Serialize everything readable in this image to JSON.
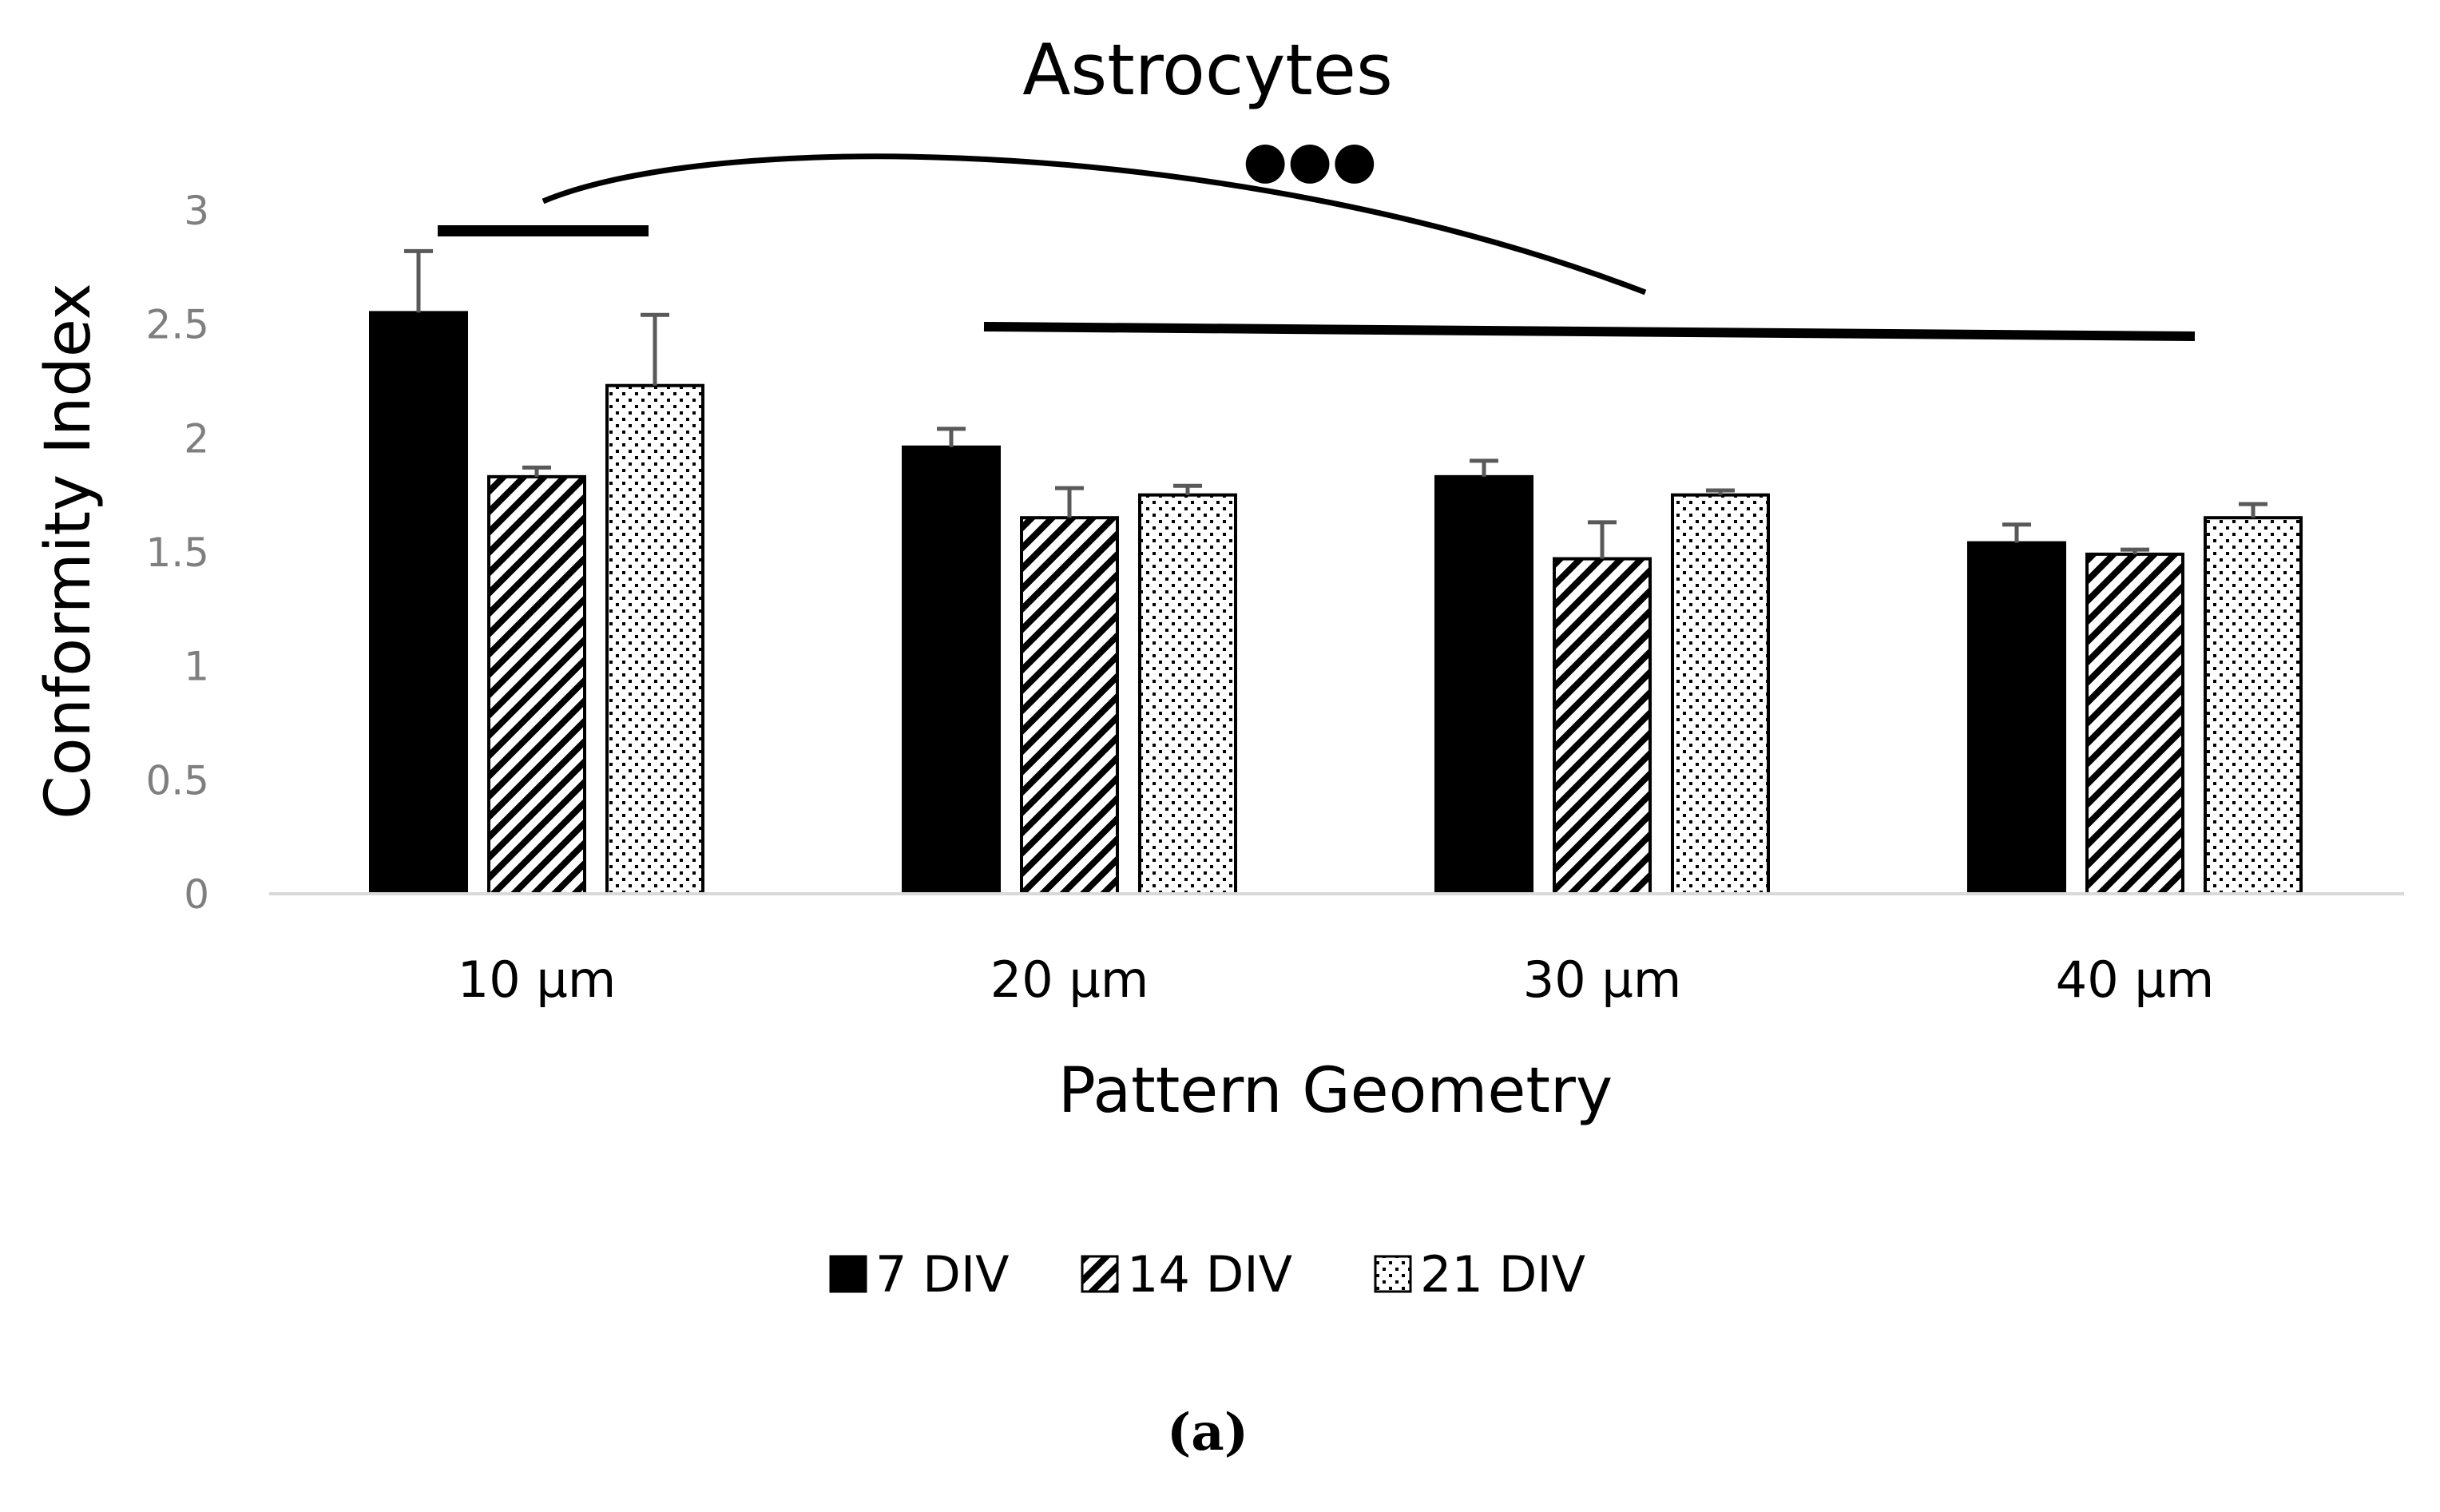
{
  "chart_data": {
    "type": "bar",
    "title": "Astrocytes",
    "xlabel": "Pattern Geometry",
    "ylabel": "Conformity Index",
    "ylim": [
      0,
      3
    ],
    "yticks": [
      "0",
      "0.5",
      "1",
      "1.5",
      "2",
      "2.5",
      "3"
    ],
    "grid": false,
    "legend_position": "bottom",
    "categories": [
      "10 µm",
      "20 µm",
      "30 µm",
      "40 µm"
    ],
    "series": [
      {
        "name": "7 DIV",
        "pattern": "solid",
        "values": [
          2.55,
          1.96,
          1.83,
          1.54
        ],
        "errors": [
          0.27,
          0.08,
          0.07,
          0.08
        ]
      },
      {
        "name": "14 DIV",
        "pattern": "hatch",
        "values": [
          1.83,
          1.65,
          1.47,
          1.49
        ],
        "errors": [
          0.04,
          0.13,
          0.16,
          0.02
        ]
      },
      {
        "name": "21 DIV",
        "pattern": "dotted",
        "values": [
          2.23,
          1.75,
          1.75,
          1.65
        ],
        "errors": [
          0.31,
          0.04,
          0.02,
          0.06
        ]
      }
    ],
    "annotations": {
      "significance_marker": "●●●"
    },
    "panel_label": "(a)"
  },
  "colors": {
    "bar": "#000000",
    "axis": "#d9d9d9",
    "tick": "#7f7f7f",
    "error": "#595959"
  }
}
